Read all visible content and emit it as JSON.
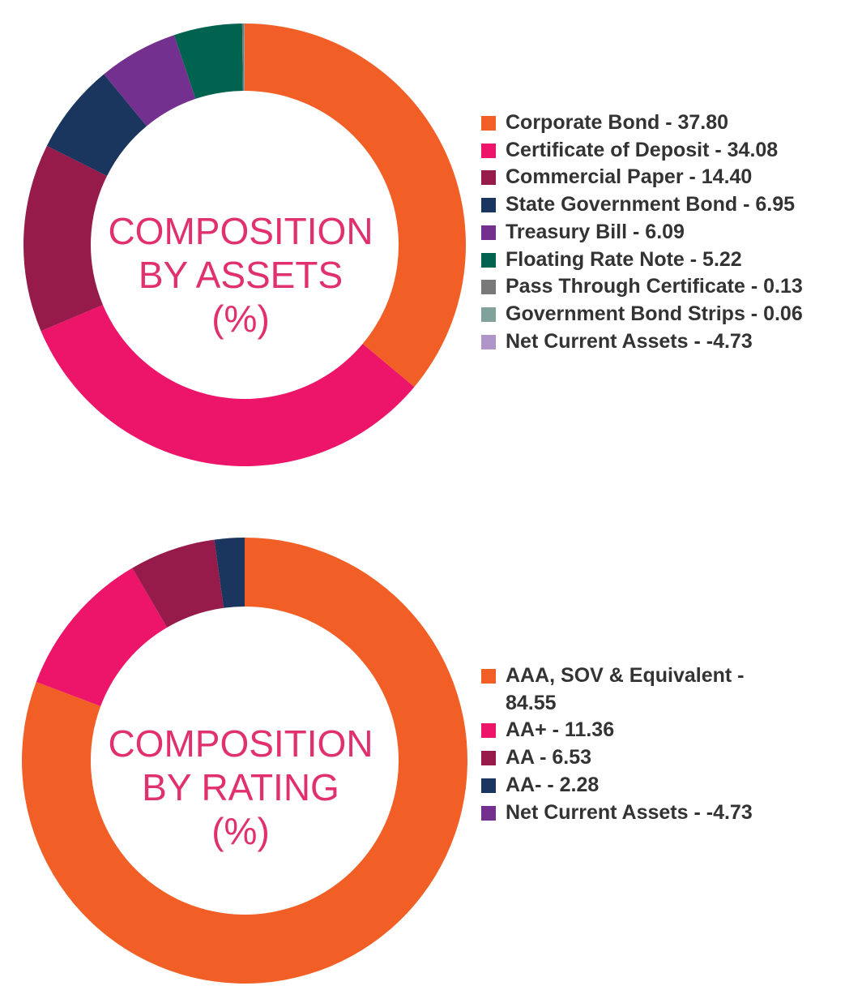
{
  "chart_data": [
    {
      "type": "pie",
      "center_label": [
        "COMPOSITION",
        "BY ASSETS",
        "(%)"
      ],
      "legend_placement": "right",
      "slices": [
        {
          "label": "Corporate Bond - 37.80",
          "value": 37.8,
          "color": "#f15f26"
        },
        {
          "label": "Certificate of Deposit - 34.08",
          "value": 34.08,
          "color": "#ec1569"
        },
        {
          "label": "Commercial Paper - 14.40",
          "value": 14.4,
          "color": "#961a4a"
        },
        {
          "label": "State Government Bond - 6.95",
          "value": 6.95,
          "color": "#1b365e"
        },
        {
          "label": "Treasury Bill - 6.09",
          "value": 6.09,
          "color": "#73308f"
        },
        {
          "label": "Floating Rate Note - 5.22",
          "value": 5.22,
          "color": "#00634f"
        },
        {
          "label": "Pass Through Certificate - 0.13",
          "value": 0.13,
          "color": "#797979"
        },
        {
          "label": "Government Bond Strips - 0.06",
          "value": 0.06,
          "color": "#7fa39b"
        },
        {
          "label": "Net Current Assets - -4.73",
          "value": -4.73,
          "color": "#b096c8"
        }
      ]
    },
    {
      "type": "pie",
      "center_label": [
        "COMPOSITION",
        "BY RATING",
        "(%)"
      ],
      "legend_placement": "right",
      "slices": [
        {
          "label": "AAA, SOV & Equivalent - 84.55",
          "value": 84.55,
          "color": "#f15f26"
        },
        {
          "label": "AA+ - 11.36",
          "value": 11.36,
          "color": "#ec1569"
        },
        {
          "label": "AA - 6.53",
          "value": 6.53,
          "color": "#961a4a"
        },
        {
          "label": "AA- - 2.28",
          "value": 2.28,
          "color": "#1b365e"
        },
        {
          "label": "Net Current Assets - -4.73",
          "value": -4.73,
          "color": "#73308f"
        }
      ]
    }
  ]
}
